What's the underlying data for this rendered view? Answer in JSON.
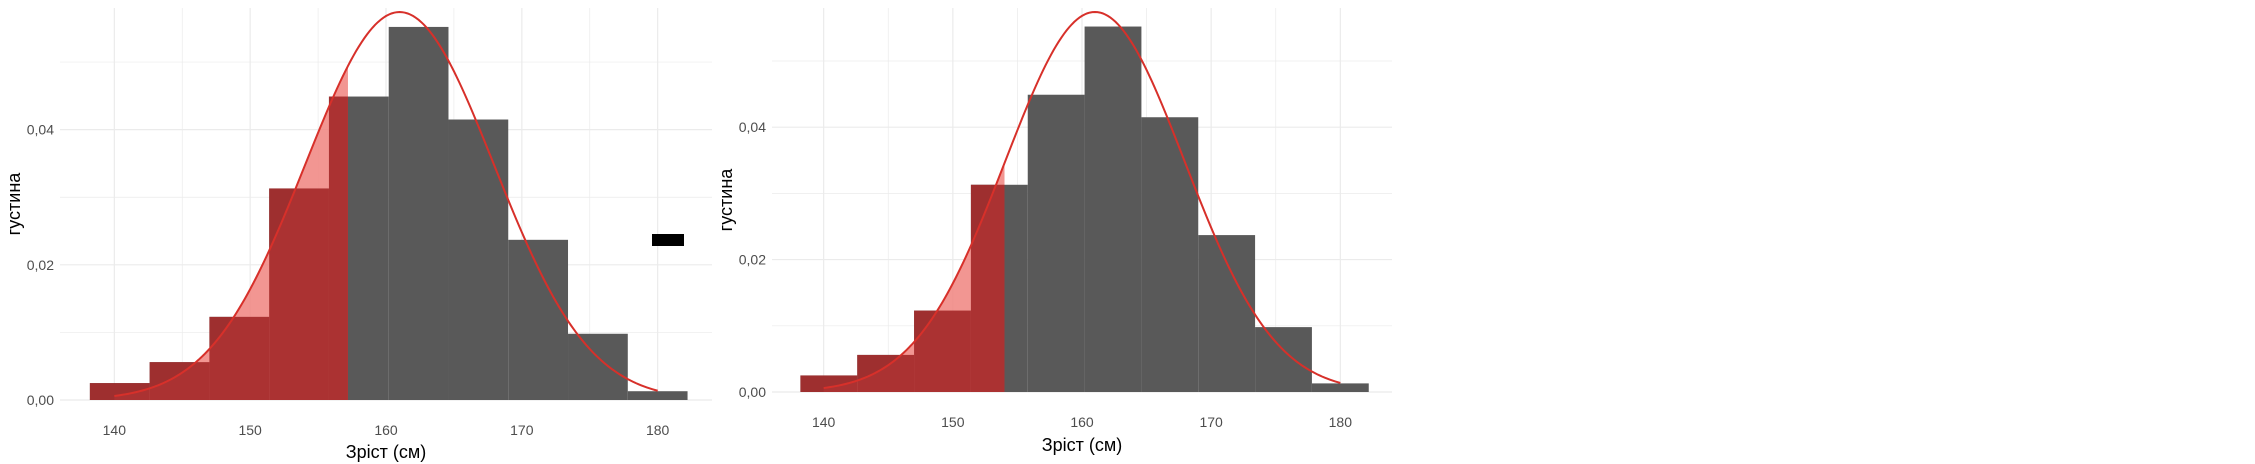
{
  "chart_data": [
    {
      "type": "histogram",
      "xlabel": "Зріст (см)",
      "ylabel": "густина",
      "xlim": [
        136,
        184
      ],
      "ylim": [
        0,
        0.058
      ],
      "x_ticks": [
        140,
        150,
        160,
        170,
        180
      ],
      "x_tick_labels": [
        "140",
        "150",
        "160",
        "170",
        "180"
      ],
      "y_ticks": [
        0,
        0.02,
        0.04
      ],
      "y_tick_labels": [
        "0,00",
        "0,02",
        "0,04"
      ],
      "grid": true,
      "bins": [
        {
          "x0": 138.2,
          "x1": 142.6,
          "density": 0.0025
        },
        {
          "x0": 142.6,
          "x1": 147.0,
          "density": 0.0056
        },
        {
          "x0": 147.0,
          "x1": 151.4,
          "density": 0.0123
        },
        {
          "x0": 151.4,
          "x1": 155.8,
          "density": 0.0313
        },
        {
          "x0": 155.8,
          "x1": 160.2,
          "density": 0.0449
        },
        {
          "x0": 160.2,
          "x1": 164.6,
          "density": 0.0552
        },
        {
          "x0": 164.6,
          "x1": 169.0,
          "density": 0.0415
        },
        {
          "x0": 169.0,
          "x1": 173.4,
          "density": 0.0237
        },
        {
          "x0": 173.4,
          "x1": 177.8,
          "density": 0.0098
        },
        {
          "x0": 177.8,
          "x1": 182.2,
          "density": 0.0013
        }
      ],
      "normal_curve": {
        "mean": 161,
        "sd": 6.95,
        "x_range": [
          140,
          180
        ]
      },
      "shaded_below_x": 157.2,
      "legend_key_swatch": true,
      "colors": {
        "bars": "#595959",
        "shade_hist": "#a52a2a",
        "shade_curve": "#f0847f",
        "curve": "#d7302a",
        "grid": "#ebebeb"
      }
    },
    {
      "type": "histogram",
      "xlabel": "Зріст (см)",
      "ylabel": "густина",
      "xlim": [
        136,
        184
      ],
      "ylim": [
        0,
        0.058
      ],
      "x_ticks": [
        140,
        150,
        160,
        170,
        180
      ],
      "x_tick_labels": [
        "140",
        "150",
        "160",
        "170",
        "180"
      ],
      "y_ticks": [
        0,
        0.02,
        0.04
      ],
      "y_tick_labels": [
        "0,00",
        "0,02",
        "0,04"
      ],
      "grid": true,
      "bins": [
        {
          "x0": 138.2,
          "x1": 142.6,
          "density": 0.0025
        },
        {
          "x0": 142.6,
          "x1": 147.0,
          "density": 0.0056
        },
        {
          "x0": 147.0,
          "x1": 151.4,
          "density": 0.0123
        },
        {
          "x0": 151.4,
          "x1": 155.8,
          "density": 0.0313
        },
        {
          "x0": 155.8,
          "x1": 160.2,
          "density": 0.0449
        },
        {
          "x0": 160.2,
          "x1": 164.6,
          "density": 0.0552
        },
        {
          "x0": 164.6,
          "x1": 169.0,
          "density": 0.0415
        },
        {
          "x0": 169.0,
          "x1": 173.4,
          "density": 0.0237
        },
        {
          "x0": 173.4,
          "x1": 177.8,
          "density": 0.0098
        },
        {
          "x0": 177.8,
          "x1": 182.2,
          "density": 0.0013
        }
      ],
      "normal_curve": {
        "mean": 161,
        "sd": 6.95,
        "x_range": [
          140,
          180
        ]
      },
      "shaded_below_x": 154.0,
      "legend_key_swatch": false,
      "colors": {
        "bars": "#595959",
        "shade_hist": "#a52a2a",
        "shade_curve": "#f0847f",
        "curve": "#d7302a",
        "grid": "#ebebeb"
      }
    }
  ]
}
